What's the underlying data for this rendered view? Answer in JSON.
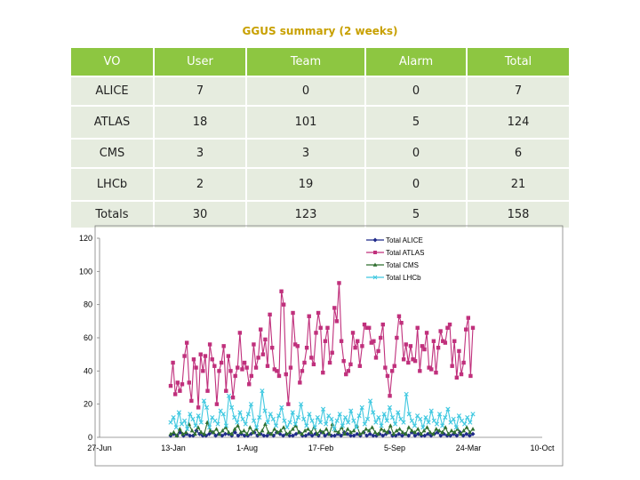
{
  "title": "GGUS summary (2 weeks)",
  "table": {
    "headers": [
      "VO",
      "User",
      "Team",
      "Alarm",
      "Total"
    ],
    "rows": [
      [
        "ALICE",
        "7",
        "0",
        "0",
        "7"
      ],
      [
        "ATLAS",
        "18",
        "101",
        "5",
        "124"
      ],
      [
        "CMS",
        "3",
        "3",
        "0",
        "6"
      ],
      [
        "LHCb",
        "2",
        "19",
        "0",
        "21"
      ],
      [
        "Totals",
        "30",
        "123",
        "5",
        "158"
      ]
    ]
  },
  "colors": {
    "header_bg": "#8dc641",
    "cell_bg": "#e6ecdf",
    "title": "#c8a000",
    "alice": "#1f2a8a",
    "atlas": "#c0307c",
    "cms": "#2f6e2f",
    "lhcb": "#3fc8e0"
  },
  "chart_data": {
    "type": "line",
    "title": "",
    "xlabel": "",
    "ylabel": "",
    "ylim": [
      0,
      120
    ],
    "yticks": [
      "0",
      "20",
      "40",
      "60",
      "80",
      "100",
      "120"
    ],
    "xticks": [
      "27-Jun",
      "13-Jan",
      "1-Aug",
      "17-Feb",
      "5-Sep",
      "24-Mar",
      "10-Oct"
    ],
    "legend": [
      "Total ALICE",
      "Total ATLAS",
      "Total CMS",
      "Total LHCb"
    ],
    "legend_position": "top-right",
    "series": [
      {
        "name": "Total ALICE",
        "color": "#1f2a8a",
        "marker": "diamond",
        "values": [
          1,
          2,
          1,
          3,
          1,
          2,
          1,
          1,
          4,
          2,
          1,
          1,
          2,
          3,
          1,
          2,
          1,
          2,
          2,
          1,
          3,
          1,
          2,
          1,
          1,
          2,
          3,
          1,
          2,
          1,
          1,
          2,
          1,
          3,
          2,
          1,
          2,
          1,
          1,
          2,
          3,
          1,
          1,
          2,
          1,
          2,
          1,
          3,
          1,
          2,
          1,
          1,
          2,
          1,
          3,
          2,
          1,
          1,
          2,
          1,
          3,
          1,
          2,
          1,
          1,
          2,
          1,
          2,
          3,
          1,
          1,
          2,
          1,
          2,
          1,
          3,
          1,
          2,
          1,
          1,
          2,
          1,
          2,
          3,
          1,
          2,
          1,
          1,
          2,
          1,
          3,
          1,
          2,
          1,
          2
        ]
      },
      {
        "name": "Total ATLAS",
        "color": "#c0307c",
        "marker": "square",
        "values": [
          31,
          45,
          26,
          33,
          28,
          32,
          49,
          57,
          33,
          22,
          47,
          42,
          18,
          50,
          40,
          49,
          28,
          56,
          47,
          43,
          20,
          40,
          45,
          55,
          28,
          49,
          40,
          24,
          37,
          42,
          63,
          41,
          45,
          42,
          32,
          37,
          56,
          42,
          48,
          65,
          50,
          59,
          43,
          74,
          54,
          41,
          40,
          37,
          88,
          80,
          38,
          20,
          42,
          75,
          56,
          55,
          33,
          40,
          45,
          54,
          73,
          48,
          44,
          63,
          75,
          66,
          39,
          58,
          66,
          45,
          51,
          78,
          70,
          93,
          58,
          46,
          38,
          40,
          44,
          63,
          54,
          58,
          43,
          55,
          68,
          66,
          66,
          57,
          58,
          48,
          52,
          60,
          68,
          42,
          37,
          25,
          40,
          43,
          60,
          73,
          69,
          47,
          56,
          45,
          55,
          47,
          46,
          66,
          40,
          55,
          53,
          63,
          42,
          41,
          58,
          39,
          54,
          64,
          58,
          57,
          66,
          68,
          43,
          58,
          36,
          52,
          38,
          45,
          65,
          72,
          37,
          66
        ]
      },
      {
        "name": "Total CMS",
        "color": "#2f6e2f",
        "marker": "triangle",
        "values": [
          2,
          3,
          1,
          5,
          2,
          3,
          8,
          4,
          2,
          6,
          3,
          2,
          9,
          4,
          3,
          5,
          2,
          4,
          6,
          3,
          2,
          5,
          7,
          3,
          4,
          2,
          6,
          3,
          5,
          2,
          4,
          8,
          3,
          2,
          5,
          3,
          4,
          6,
          2,
          3,
          5,
          7,
          3,
          2,
          4,
          5,
          3,
          6,
          2,
          4,
          3,
          5,
          2,
          8,
          4,
          3,
          6,
          2,
          5,
          3,
          4,
          7,
          2,
          3,
          5,
          4,
          6,
          3,
          2,
          5,
          4,
          3,
          7,
          2,
          4,
          5,
          3,
          2,
          6,
          4,
          3,
          5,
          2,
          4,
          6,
          3,
          2,
          5,
          4,
          3,
          6,
          2,
          4,
          3,
          5,
          2,
          4,
          6,
          3,
          5
        ]
      },
      {
        "name": "Total LHCb",
        "color": "#3fc8e0",
        "marker": "x",
        "values": [
          9,
          12,
          6,
          15,
          8,
          10,
          5,
          14,
          11,
          7,
          13,
          9,
          22,
          18,
          6,
          12,
          10,
          8,
          16,
          14,
          7,
          25,
          18,
          12,
          9,
          15,
          11,
          8,
          14,
          20,
          10,
          6,
          12,
          28,
          16,
          9,
          14,
          11,
          7,
          13,
          18,
          10,
          6,
          9,
          15,
          8,
          12,
          20,
          11,
          7,
          14,
          10,
          6,
          12,
          9,
          17,
          8,
          13,
          11,
          5,
          10,
          14,
          7,
          12,
          9,
          16,
          10,
          6,
          13,
          18,
          8,
          11,
          22,
          15,
          9,
          12,
          7,
          14,
          10,
          18,
          12,
          8,
          15,
          11,
          9,
          26,
          14,
          10,
          7,
          13,
          11,
          6,
          12,
          9,
          16,
          10,
          8,
          14,
          7,
          12,
          17,
          9,
          11,
          6,
          13,
          10,
          8,
          12,
          9,
          14
        ]
      }
    ]
  }
}
